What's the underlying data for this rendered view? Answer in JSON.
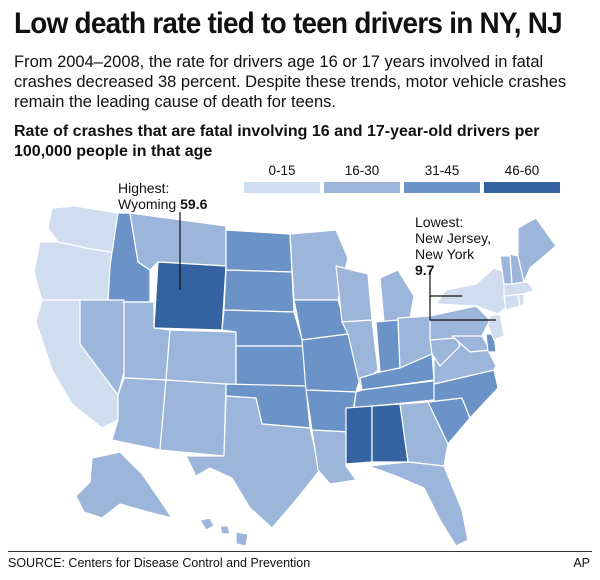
{
  "headline": "Low death rate tied to teen drivers in NY, NJ",
  "intro": "From 2004–2008, the rate for drivers age 16 or 17 years involved in fatal crashes decreased 38 percent. Despite these trends, motor vehicle crashes remain the leading cause of death for teens.",
  "subhead": "Rate of crashes that are fatal involving 16 and 17-year-old drivers per 100,000 people in that age",
  "legend": [
    {
      "label": "0-15",
      "color": "#cfddef"
    },
    {
      "label": "16-30",
      "color": "#9bb6da"
    },
    {
      "label": "31-45",
      "color": "#6c93c7"
    },
    {
      "label": "46-60",
      "color": "#3563a2"
    }
  ],
  "annotations": {
    "highest": {
      "line1": "Highest:",
      "name": "Wyoming",
      "value": "59.6"
    },
    "lowest": {
      "line1": "Lowest:",
      "line2": "New Jersey,",
      "line3": "New York",
      "value": "9.7"
    }
  },
  "source": "SOURCE: Centers for Disease Control and Prevention",
  "credit": "AP",
  "state_fills": {
    "WA": "#cfddef",
    "OR": "#cfddef",
    "CA": "#cfddef",
    "ID": "#6c93c7",
    "NV": "#9bb6da",
    "MT": "#9bb6da",
    "WY": "#3563a2",
    "UT": "#9bb6da",
    "CO": "#9bb6da",
    "AZ": "#9bb6da",
    "NM": "#9bb6da",
    "ND": "#6c93c7",
    "SD": "#6c93c7",
    "NE": "#6c93c7",
    "KS": "#6c93c7",
    "OK": "#6c93c7",
    "TX": "#9bb6da",
    "MN": "#9bb6da",
    "IA": "#6c93c7",
    "MO": "#6c93c7",
    "AR": "#6c93c7",
    "LA": "#9bb6da",
    "WI": "#9bb6da",
    "IL": "#9bb6da",
    "MI": "#9bb6da",
    "IN": "#6c93c7",
    "OH": "#9bb6da",
    "KY": "#6c93c7",
    "TN": "#6c93c7",
    "MS": "#3563a2",
    "AL": "#3563a2",
    "GA": "#9bb6da",
    "FL": "#9bb6da",
    "SC": "#6c93c7",
    "NC": "#6c93c7",
    "VA": "#9bb6da",
    "WV": "#9bb6da",
    "PA": "#9bb6da",
    "NY": "#cfddef",
    "NJ": "#cfddef",
    "DE": "#6c93c7",
    "MD": "#9bb6da",
    "CT": "#cfddef",
    "RI": "#cfddef",
    "MA": "#cfddef",
    "VT": "#9bb6da",
    "NH": "#9bb6da",
    "ME": "#9bb6da",
    "AK": "#9bb6da",
    "HI": "#9bb6da"
  }
}
